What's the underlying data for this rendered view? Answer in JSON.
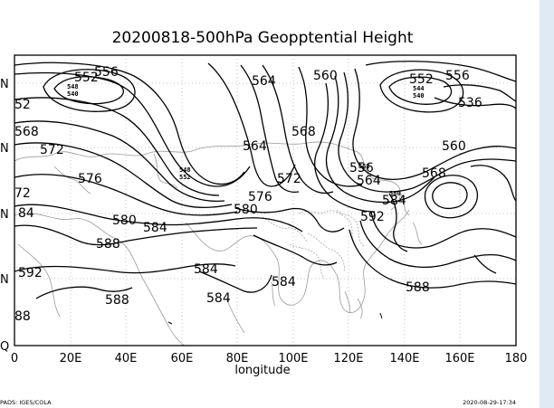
{
  "chart_data": {
    "type": "contour",
    "title": "20200818-500hPa Geopptential Height",
    "xlabel": "longitude",
    "x_ticks": [
      "0",
      "20E",
      "40E",
      "60E",
      "80E",
      "100E",
      "120E",
      "140E",
      "160E",
      "180"
    ],
    "y_ticks_partial": [
      "N",
      "N",
      "N",
      "N",
      "Q"
    ],
    "contour_labels": [
      "556",
      "564",
      "560",
      "552",
      "556",
      "536",
      "568",
      "564",
      "560",
      "572",
      "576",
      "556",
      "568",
      "564",
      "572",
      "576",
      "580",
      "584",
      "592",
      "580",
      "584",
      "588",
      "592",
      "584",
      "584",
      "588",
      "584",
      "588",
      "88",
      "552",
      "52",
      "568",
      "72",
      "84"
    ]
  },
  "footer": {
    "left": "PADS: IGES/COLA",
    "right": "2020-08-29-17:34"
  },
  "colors": {
    "background": "#ffffff",
    "sidebar": "#dfeaf4",
    "contours": "#000000",
    "coastlines": "#9a9a9a"
  }
}
